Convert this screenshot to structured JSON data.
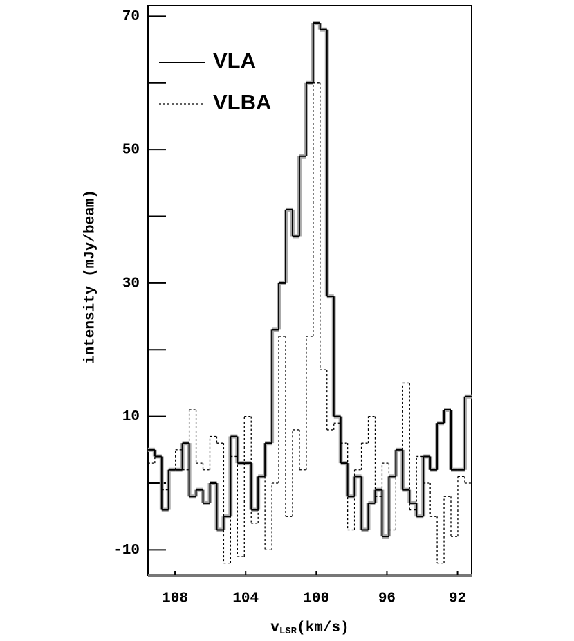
{
  "chart_data": {
    "type": "step",
    "y_label": "intensity (mJy/beam)",
    "x_label": "v",
    "x_label_sub": "LSR",
    "x_label_unit": "(km/s)",
    "x": [
      109.34,
      108.95,
      108.56,
      108.17,
      107.78,
      107.39,
      107.0,
      106.61,
      106.22,
      105.83,
      105.44,
      105.05,
      104.66,
      104.27,
      103.88,
      103.49,
      103.1,
      102.71,
      102.32,
      101.93,
      101.54,
      101.15,
      100.76,
      100.37,
      99.98,
      99.59,
      99.2,
      98.81,
      98.42,
      98.03,
      97.64,
      97.25,
      96.86,
      96.47,
      96.08,
      95.69,
      95.3,
      94.91,
      94.52,
      94.13,
      93.74,
      93.35,
      92.96,
      92.57,
      92.18,
      91.79,
      91.4
    ],
    "series": [
      {
        "name": "VLA",
        "color": "#000000",
        "shadow": "#aaaaaa",
        "dash": false,
        "values": [
          5,
          4,
          -4,
          2,
          2,
          6,
          -2,
          -1,
          -3,
          0,
          -7,
          -5,
          7,
          3,
          3,
          -4,
          1,
          6,
          23,
          30,
          41,
          37,
          49,
          60,
          69,
          68,
          28,
          10,
          3,
          -2,
          1,
          -7,
          -3,
          -1,
          -8,
          1,
          5,
          -1,
          -3,
          -5,
          4,
          2,
          9,
          11,
          2,
          2,
          13
        ]
      },
      {
        "name": "VLBA",
        "color": "#000000",
        "dash": true,
        "values": [
          3,
          4,
          -1,
          2,
          5,
          2,
          11,
          3,
          2,
          7,
          6,
          -12,
          4,
          -11,
          10,
          -6,
          1,
          -10,
          0,
          22,
          -5,
          8,
          2,
          22,
          60,
          17,
          8,
          9,
          6,
          -7,
          2,
          6,
          10,
          -2,
          3,
          -7,
          5,
          15,
          -4,
          4,
          0,
          -5,
          -12,
          -2,
          -8,
          1,
          0
        ]
      }
    ],
    "xlim": [
      109.53,
      91.2
    ],
    "xticks": [
      108,
      104,
      100,
      96,
      92
    ],
    "ylim": [
      -13.8,
      71.6
    ],
    "yticks": [
      -10,
      10,
      30,
      50,
      70
    ],
    "minor_yticks": [
      0,
      20,
      40,
      60
    ],
    "legend": "top-left"
  }
}
